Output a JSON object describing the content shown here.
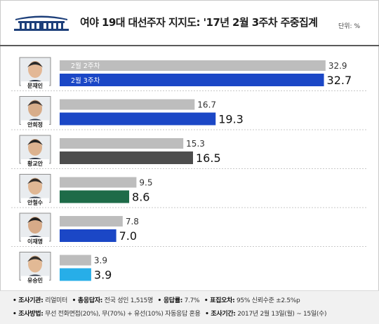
{
  "header": {
    "title": "여야 19대 대선주자 지지도: '17년 2월 3주차 주중집계",
    "unit": "단위: %"
  },
  "chart_data": {
    "type": "bar",
    "orientation": "horizontal",
    "title": "여야 19대 대선주자 지지도: '17년 2월 3주차 주중집계",
    "unit": "%",
    "categories": [
      "문재인",
      "안희정",
      "황교안",
      "안철수",
      "이재명",
      "유승민"
    ],
    "series": [
      {
        "name": "2월 2주차",
        "values": [
          32.9,
          16.7,
          15.3,
          9.5,
          7.8,
          3.9
        ]
      },
      {
        "name": "2월 3주차",
        "values": [
          32.7,
          19.3,
          16.5,
          8.6,
          7.0,
          3.9
        ]
      }
    ],
    "labels_prev": [
      "32.9",
      "16.7",
      "15.3",
      "9.5",
      "7.8",
      "3.9"
    ],
    "labels_curr": [
      "32.7",
      "19.3",
      "16.5",
      "8.6",
      "7.0",
      "3.9"
    ],
    "xlim": [
      0,
      35
    ],
    "legend_placement": "inside-first-bars",
    "colors": {
      "prev": "#bdbdbd",
      "curr": [
        "#1b47c6",
        "#1b47c6",
        "#4d4d4d",
        "#1e6b48",
        "#1b47c6",
        "#27aee8"
      ]
    }
  },
  "footer": {
    "line1": [
      {
        "key": "조사기관:",
        "value": "리얼미터"
      },
      {
        "key": "총응답자:",
        "value": "전국 성인 1,515명"
      },
      {
        "key": "응답률:",
        "value": "7.7%"
      },
      {
        "key": "표집오차:",
        "value": "95% 신뢰수준 ±2.5%p"
      }
    ],
    "line2": [
      {
        "key": "조사방법:",
        "value": "무선 전화면접(20%), 무(70%) + 유선(10%) 자동응답 혼용"
      },
      {
        "key": "조사기간:",
        "value": "2017년 2월 13일(월) ~ 15일(수)"
      }
    ]
  }
}
